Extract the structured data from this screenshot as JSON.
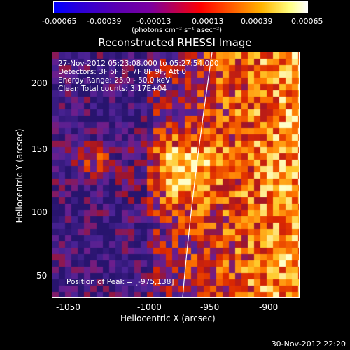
{
  "colorbar": {
    "ticks": [
      "-0.00065",
      "-0.00039",
      "-0.00013",
      "0.00013",
      "0.00039",
      "0.00065"
    ],
    "units": "(photons cm⁻² s⁻¹ asec⁻²)"
  },
  "title": "Reconstructed RHESSI Image",
  "info": {
    "line1": "27-Nov-2012 05:23:08.000 to 05:27:54.000",
    "line2": "Detectors: 3F 5F 6F 7F 8F 9F, Att 0",
    "line3": "Energy Range: 25.0 - 50.0 keV",
    "line4": "Clean     Total counts: 3.17E+04",
    "peak": "Position of Peak = [-975,138]"
  },
  "axes": {
    "xlabel": "Heliocentric X (arcsec)",
    "ylabel": "Heliocentric Y (arcsec)",
    "xticks": [
      "-1050",
      "-1000",
      "-950",
      "-900"
    ],
    "yticks": [
      "200",
      "150",
      "100",
      "50"
    ]
  },
  "timestamp": "30-Nov-2012 22:20"
}
